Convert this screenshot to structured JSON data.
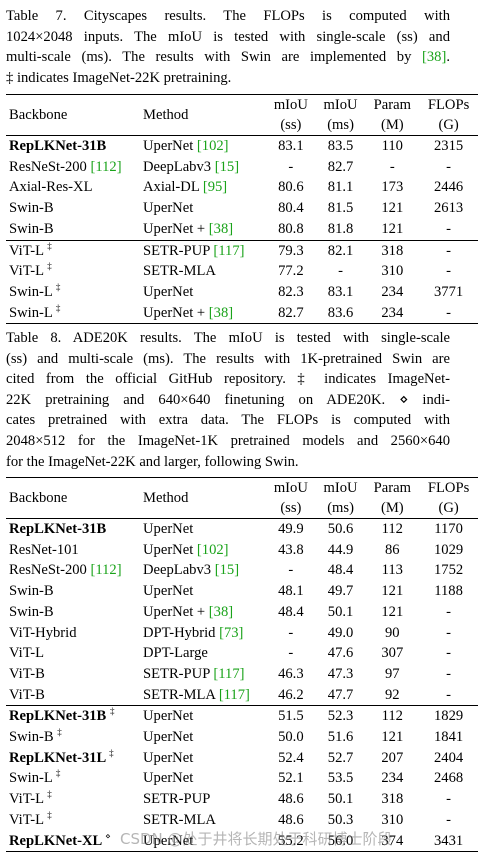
{
  "table7": {
    "caption": [
      "Table 7.   Cityscapes results.   The FLOPs is computed with",
      "1024×2048 inputs. The mIoU is tested with single-scale (ss) and",
      "multi-scale (ms). The results with Swin are implemented by [38].",
      "‡ indicates ImageNet-22K pretraining."
    ],
    "headers": {
      "backbone": "Backbone",
      "method": "Method",
      "miou_ss": [
        "mIoU",
        "(ss)"
      ],
      "miou_ms": [
        "mIoU",
        "(ms)"
      ],
      "param": [
        "Param",
        "(M)"
      ],
      "flops": [
        "FLOPs",
        "(G)"
      ]
    },
    "rows": [
      {
        "backbone": "RepLKNet-31B",
        "sup": "",
        "method": "UperNet ",
        "ref": "[102]",
        "ss": "83.1",
        "ms": "83.5",
        "param": "110",
        "flops": "2315"
      },
      {
        "backbone": "ResNeSt-200 ",
        "bref": "[112]",
        "sup": "",
        "method": "DeepLabv3 ",
        "ref": "[15]",
        "ss": "-",
        "ms": "82.7",
        "param": "-",
        "flops": "-"
      },
      {
        "backbone": "Axial-Res-XL",
        "sup": "",
        "method": "Axial-DL ",
        "ref": "[95]",
        "ss": "80.6",
        "ms": "81.1",
        "param": "173",
        "flops": "2446"
      },
      {
        "backbone": "Swin-B",
        "sup": "",
        "method": "UperNet",
        "ref": "",
        "ss": "80.4",
        "ms": "81.5",
        "param": "121",
        "flops": "2613"
      },
      {
        "backbone": "Swin-B",
        "sup": "",
        "method": "UperNet + ",
        "ref": "[38]",
        "ss": "80.8",
        "ms": "81.8",
        "param": "121",
        "flops": "-"
      },
      {
        "backbone": "ViT-L ",
        "sup": "‡",
        "method": "SETR-PUP ",
        "ref": "[117]",
        "ss": "79.3",
        "ms": "82.1",
        "param": "318",
        "flops": "-"
      },
      {
        "backbone": "ViT-L ",
        "sup": "‡",
        "method": "SETR-MLA",
        "ref": "",
        "ss": "77.2",
        "ms": "-",
        "param": "310",
        "flops": "-"
      },
      {
        "backbone": "Swin-L ",
        "sup": "‡",
        "method": "UperNet",
        "ref": "",
        "ss": "82.3",
        "ms": "83.1",
        "param": "234",
        "flops": "3771"
      },
      {
        "backbone": "Swin-L ",
        "sup": "‡",
        "method": "UperNet + ",
        "ref": "[38]",
        "ss": "82.7",
        "ms": "83.6",
        "param": "234",
        "flops": "-"
      }
    ]
  },
  "table8": {
    "caption": [
      "Table 8.  ADE20K results.  The mIoU is tested with single-scale",
      "(ss) and multi-scale (ms). The results with 1K-pretrained Swin are",
      "cited from the official GitHub repository.  ‡ indicates ImageNet-",
      "22K pretraining and 640×640 finetuning on ADE20K. ⋄ indi-",
      "cates pretrained with extra data.  The FLOPs is computed with",
      "2048×512 for the ImageNet-1K pretrained models and 2560×640",
      "for the ImageNet-22K and larger, following Swin."
    ],
    "headers": {
      "backbone": "Backbone",
      "method": "Method",
      "miou_ss": [
        "mIoU",
        "(ss)"
      ],
      "miou_ms": [
        "mIoU",
        "(ms)"
      ],
      "param": [
        "Param",
        "(M)"
      ],
      "flops": [
        "FLOPs",
        "(G)"
      ]
    },
    "rows": [
      {
        "backbone": "RepLKNet-31B",
        "sup": "",
        "method": "UperNet",
        "ref": "",
        "ss": "49.9",
        "ms": "50.6",
        "param": "112",
        "flops": "1170"
      },
      {
        "backbone": "ResNet-101",
        "sup": "",
        "method": "UperNet ",
        "ref": "[102]",
        "ss": "43.8",
        "ms": "44.9",
        "param": "86",
        "flops": "1029"
      },
      {
        "backbone": "ResNeSt-200 ",
        "bref": "[112]",
        "sup": "",
        "method": "DeepLabv3 ",
        "ref": "[15]",
        "ss": "-",
        "ms": "48.4",
        "param": "113",
        "flops": "1752"
      },
      {
        "backbone": "Swin-B",
        "sup": "",
        "method": "UperNet",
        "ref": "",
        "ss": "48.1",
        "ms": "49.7",
        "param": "121",
        "flops": "1188"
      },
      {
        "backbone": "Swin-B",
        "sup": "",
        "method": "UperNet + ",
        "ref": "[38]",
        "ss": "48.4",
        "ms": "50.1",
        "param": "121",
        "flops": "-"
      },
      {
        "backbone": "ViT-Hybrid",
        "sup": "",
        "method": "DPT-Hybrid ",
        "ref": "[73]",
        "ss": "-",
        "ms": "49.0",
        "param": "90",
        "flops": "-"
      },
      {
        "backbone": "ViT-L",
        "sup": "",
        "method": "DPT-Large",
        "ref": "",
        "ss": "-",
        "ms": "47.6",
        "param": "307",
        "flops": "-"
      },
      {
        "backbone": "ViT-B",
        "sup": "",
        "method": "SETR-PUP ",
        "ref": "[117]",
        "ss": "46.3",
        "ms": "47.3",
        "param": "97",
        "flops": "-"
      },
      {
        "backbone": "ViT-B",
        "sup": "",
        "method": "SETR-MLA ",
        "ref": "[117]",
        "ss": "46.2",
        "ms": "47.7",
        "param": "92",
        "flops": "-"
      },
      {
        "backbone": "RepLKNet-31B ",
        "sup": "‡",
        "method": "UperNet",
        "ref": "",
        "ss": "51.5",
        "ms": "52.3",
        "param": "112",
        "flops": "1829"
      },
      {
        "backbone": "Swin-B ",
        "sup": "‡",
        "method": "UperNet",
        "ref": "",
        "ss": "50.0",
        "ms": "51.6",
        "param": "121",
        "flops": "1841"
      },
      {
        "backbone": "RepLKNet-31L ",
        "sup": "‡",
        "method": "UperNet",
        "ref": "",
        "ss": "52.4",
        "ms": "52.7",
        "param": "207",
        "flops": "2404"
      },
      {
        "backbone": "Swin-L ",
        "sup": "‡",
        "method": "UperNet",
        "ref": "",
        "ss": "52.1",
        "ms": "53.5",
        "param": "234",
        "flops": "2468"
      },
      {
        "backbone": "ViT-L ",
        "sup": "‡",
        "method": "SETR-PUP",
        "ref": "",
        "ss": "48.6",
        "ms": "50.1",
        "param": "318",
        "flops": "-"
      },
      {
        "backbone": "ViT-L ",
        "sup": "‡",
        "method": "SETR-MLA",
        "ref": "",
        "ss": "48.6",
        "ms": "50.3",
        "param": "310",
        "flops": "-"
      },
      {
        "backbone": "RepLKNet-XL ",
        "sup": "⋄",
        "method": "UperNet",
        "ref": "",
        "ss": "55.2",
        "ms": "56.0",
        "param": "374",
        "flops": "3431"
      }
    ]
  },
  "watermark": "CSDN @处于井将长期处于科研博士阶段",
  "colors": {
    "reference_link": "#1aa31a"
  }
}
